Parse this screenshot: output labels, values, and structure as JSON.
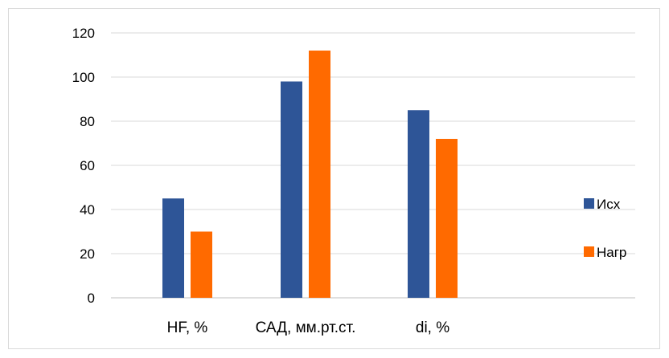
{
  "chart_data": {
    "type": "bar",
    "title": "",
    "xlabel": "",
    "ylabel": "",
    "categories": [
      "HF, %",
      "САД, мм.рт.ст.",
      "di, %"
    ],
    "series": [
      {
        "name": "Исх",
        "values": [
          45,
          98,
          85
        ],
        "color": "#2E5597"
      },
      {
        "name": "Нагр",
        "values": [
          30,
          112,
          72
        ],
        "color": "#FF6A00"
      }
    ],
    "ylim": [
      0,
      120
    ],
    "yticks": [
      0,
      20,
      40,
      60,
      80,
      100,
      120
    ],
    "grid": true,
    "legend_position": "right"
  }
}
